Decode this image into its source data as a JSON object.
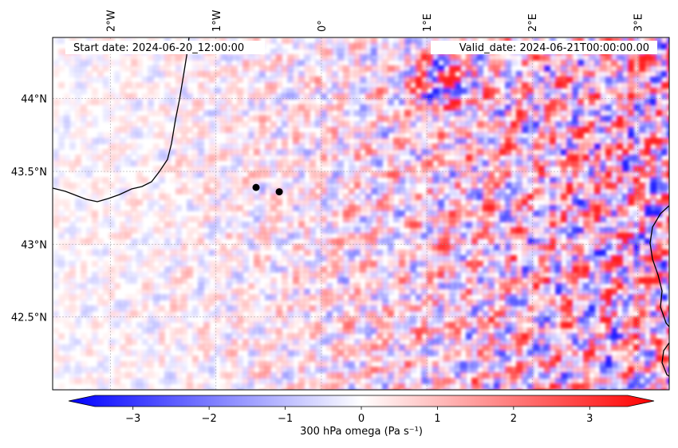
{
  "header": {
    "start_label": "Start date: 2024-06-20_12:00:00",
    "valid_label": "Valid_date: 2024-06-21T00:00:00.00"
  },
  "map": {
    "lon_range": [
      -2.55,
      3.3
    ],
    "lat_range": [
      42.0,
      44.42
    ],
    "lon_ticks": [
      {
        "value": -2,
        "label": "2°W"
      },
      {
        "value": -1,
        "label": "1°W"
      },
      {
        "value": 0,
        "label": "0°"
      },
      {
        "value": 1,
        "label": "1°E"
      },
      {
        "value": 2,
        "label": "2°E"
      },
      {
        "value": 3,
        "label": "3°E"
      }
    ],
    "lat_ticks": [
      {
        "value": 44.0,
        "label": "44°N"
      },
      {
        "value": 43.5,
        "label": "43.5°N"
      },
      {
        "value": 43.0,
        "label": "43°N"
      },
      {
        "value": 42.5,
        "label": "42.5°N"
      }
    ],
    "points": [
      {
        "name": "marker-1",
        "lon": -0.62,
        "lat": 43.39
      },
      {
        "name": "marker-2",
        "lon": -0.4,
        "lat": 43.36
      }
    ],
    "colors": {
      "negative": "#0000ff",
      "zero": "#ffffff",
      "positive": "#ff0000",
      "coast": "#000000"
    }
  },
  "colorbar": {
    "label": "300 hPa omega (Pa s⁻¹)",
    "min": -3.5,
    "max": 3.5,
    "ticks": [
      {
        "value": -3,
        "label": "−3"
      },
      {
        "value": -2,
        "label": "−2"
      },
      {
        "value": -1,
        "label": "−1"
      },
      {
        "value": 0,
        "label": "0"
      },
      {
        "value": 1,
        "label": "1"
      },
      {
        "value": 2,
        "label": "2"
      },
      {
        "value": 3,
        "label": "3"
      }
    ]
  }
}
